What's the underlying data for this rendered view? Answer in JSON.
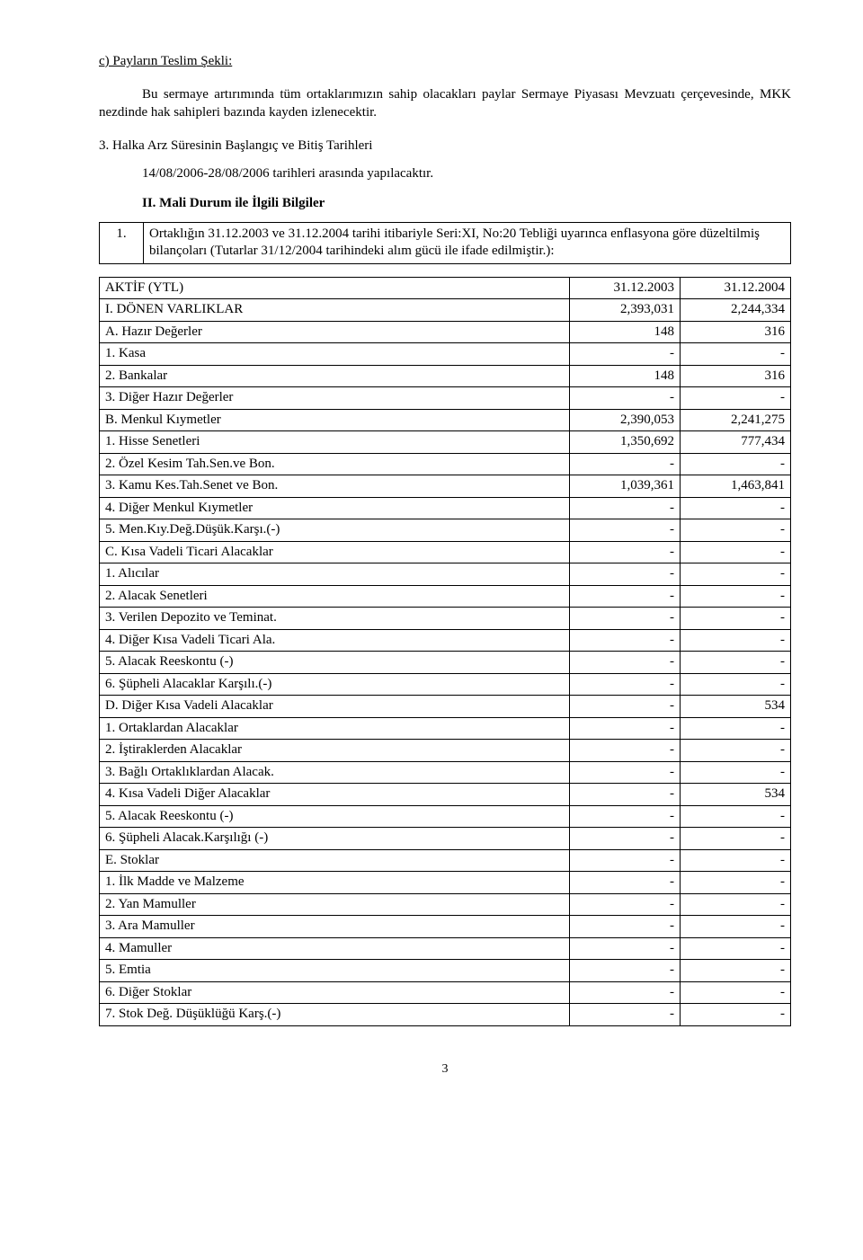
{
  "section_c_heading": "c) Payların Teslim Şekli:",
  "section_c_paragraph": "Bu sermaye artırımında tüm ortaklarımızın sahip olacakları paylar Sermaye Piyasası Mevzuatı çerçevesinde, MKK nezdinde hak sahipleri bazında kayden izlenecektir.",
  "section3_heading": "3. Halka Arz Süresinin Başlangıç ve Bitiş Tarihleri",
  "section3_paragraph": "14/08/2006-28/08/2006 tarihleri arasında yapılacaktır.",
  "sectionII_heading": "II. Mali Durum ile İlgili Bilgiler",
  "box1": {
    "no": "1.",
    "text": "Ortaklığın 31.12.2003 ve 31.12.2004 tarihi itibariyle Seri:XI, No:20 Tebliği uyarınca enflasyona göre düzeltilmiş bilançoları (Tutarlar 31/12/2004 tarihindeki alım gücü ile ifade edilmiştir.):"
  },
  "aktif_header": {
    "label": "AKTİF (YTL)",
    "c1": "31.12.2003",
    "c2": "31.12.2004"
  },
  "rows": [
    {
      "label": "I.  DÖNEN VARLIKLAR",
      "c1": "2,393,031",
      "c2": "2,244,334",
      "indent": 0
    },
    {
      "label": "A. Hazır Değerler",
      "c1": "148",
      "c2": "316",
      "indent": 1
    },
    {
      "label": "1. Kasa",
      "c1": "-",
      "c2": "-",
      "indent": 2
    },
    {
      "label": "2. Bankalar",
      "c1": "148",
      "c2": "316",
      "indent": 2
    },
    {
      "label": "3. Diğer Hazır Değerler",
      "c1": "-",
      "c2": "-",
      "indent": 2
    },
    {
      "label": "B. Menkul Kıymetler",
      "c1": "2,390,053",
      "c2": "2,241,275",
      "indent": 1
    },
    {
      "label": "1. Hisse Senetleri",
      "c1": "1,350,692",
      "c2": "777,434",
      "indent": 2
    },
    {
      "label": "2. Özel Kesim Tah.Sen.ve Bon.",
      "c1": "-",
      "c2": "-",
      "indent": 2
    },
    {
      "label": "3. Kamu Kes.Tah.Senet ve Bon.",
      "c1": "1,039,361",
      "c2": "1,463,841",
      "indent": 2
    },
    {
      "label": "4. Diğer Menkul Kıymetler",
      "c1": "-",
      "c2": "-",
      "indent": 2
    },
    {
      "label": "5. Men.Kıy.Değ.Düşük.Karşı.(-)",
      "c1": "-",
      "c2": "-",
      "indent": 2
    },
    {
      "label": "C. Kısa Vadeli Ticari Alacaklar",
      "c1": "-",
      "c2": "-",
      "indent": 1
    },
    {
      "label": "1. Alıcılar",
      "c1": "-",
      "c2": "-",
      "indent": 2
    },
    {
      "label": "2. Alacak Senetleri",
      "c1": "-",
      "c2": "-",
      "indent": 2
    },
    {
      "label": "3. Verilen Depozito ve Teminat.",
      "c1": "-",
      "c2": "-",
      "indent": 2
    },
    {
      "label": "4. Diğer Kısa Vadeli Ticari Ala.",
      "c1": "-",
      "c2": "-",
      "indent": 2
    },
    {
      "label": "5. Alacak Reeskontu (-)",
      "c1": "-",
      "c2": "-",
      "indent": 2
    },
    {
      "label": "6. Şüpheli Alacaklar Karşılı.(-)",
      "c1": "-",
      "c2": "-",
      "indent": 2
    },
    {
      "label": "D. Diğer Kısa Vadeli Alacaklar",
      "c1": "-",
      "c2": "534",
      "indent": 1
    },
    {
      "label": "1. Ortaklardan Alacaklar",
      "c1": "-",
      "c2": "-",
      "indent": 2
    },
    {
      "label": "2. İştiraklerden Alacaklar",
      "c1": "-",
      "c2": "-",
      "indent": 2
    },
    {
      "label": "3. Bağlı Ortaklıklardan Alacak.",
      "c1": "-",
      "c2": "-",
      "indent": 2
    },
    {
      "label": "4. Kısa Vadeli Diğer Alacaklar",
      "c1": "-",
      "c2": "534",
      "indent": 2
    },
    {
      "label": "5. Alacak Reeskontu (-)",
      "c1": "-",
      "c2": "-",
      "indent": 2
    },
    {
      "label": "6. Şüpheli Alacak.Karşılığı (-)",
      "c1": "-",
      "c2": "-",
      "indent": 2
    },
    {
      "label": "E. Stoklar",
      "c1": "-",
      "c2": "-",
      "indent": 1
    },
    {
      "label": "1. İlk Madde ve Malzeme",
      "c1": "-",
      "c2": "-",
      "indent": 2
    },
    {
      "label": "2. Yan Mamuller",
      "c1": "-",
      "c2": "-",
      "indent": 2
    },
    {
      "label": "3. Ara Mamuller",
      "c1": "-",
      "c2": "-",
      "indent": 2
    },
    {
      "label": "4. Mamuller",
      "c1": "-",
      "c2": "-",
      "indent": 2
    },
    {
      "label": "5. Emtia",
      "c1": "-",
      "c2": "-",
      "indent": 2
    },
    {
      "label": "6. Diğer Stoklar",
      "c1": "-",
      "c2": "-",
      "indent": 2
    },
    {
      "label": "7. Stok Değ. Düşüklüğü Karş.(-)",
      "c1": "-",
      "c2": "-",
      "indent": 2
    }
  ],
  "page_number": "3"
}
